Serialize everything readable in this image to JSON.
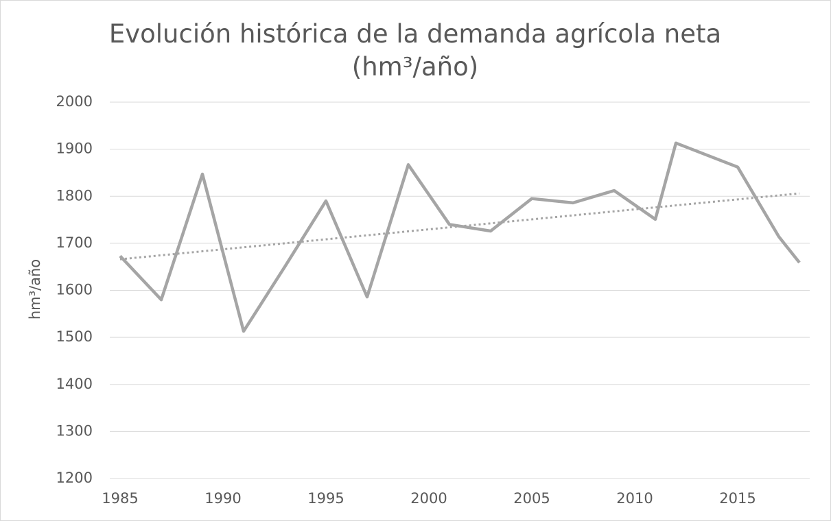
{
  "chart_data": {
    "type": "line",
    "title": "Evolución histórica de la demanda agrícola neta (hm³/año)",
    "y_label": "hm³/año",
    "xlim": [
      1984.5,
      2018.5
    ],
    "xticks": [
      1985,
      1990,
      1995,
      2000,
      2005,
      2010,
      2015
    ],
    "ylim": [
      1200,
      2000
    ],
    "yticks": [
      1200,
      1300,
      1400,
      1500,
      1600,
      1700,
      1800,
      1900,
      2000
    ],
    "grid": true,
    "series": [
      {
        "color": "#a5a5a5",
        "style": "solid",
        "x": [
          1985,
          1987,
          1989,
          1991,
          1993,
          1995,
          1997,
          1999,
          2001,
          2003,
          2005,
          2007,
          2009,
          2011,
          2012,
          2015,
          2017,
          2018
        ],
        "values": [
          1673,
          1580,
          1847,
          1513,
          1650,
          1790,
          1586,
          1867,
          1740,
          1726,
          1795,
          1786,
          1812,
          1751,
          1913,
          1862,
          1714,
          1659
        ]
      },
      {
        "color": "#a5a5a5",
        "style": "dotted",
        "x": [
          1985,
          2018
        ],
        "values": [
          1666,
          1806
        ]
      }
    ]
  }
}
